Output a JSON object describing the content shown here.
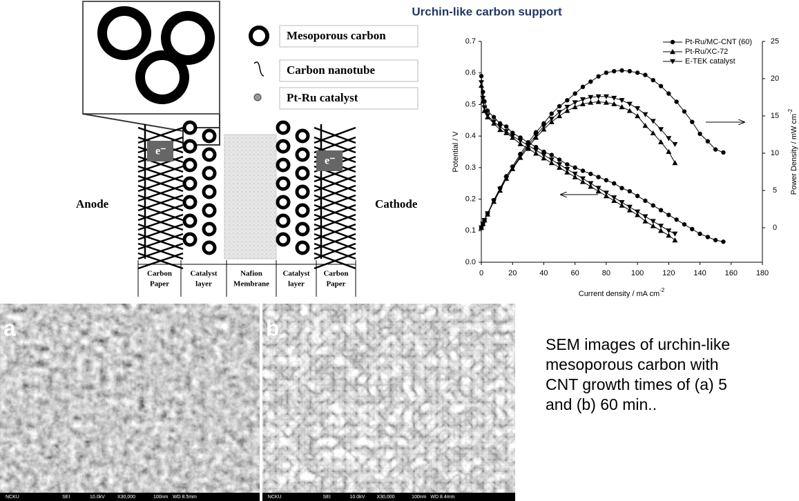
{
  "title": "Urchin-like carbon support",
  "diagram": {
    "legend": [
      "Mesoporous carbon",
      "Carbon nanotube",
      "Pt-Ru catalyst"
    ],
    "anode": "Anode",
    "cathode": "Cathode",
    "electrons": [
      "e⁻",
      "e⁻"
    ],
    "layers": [
      [
        "Carbon",
        "Paper"
      ],
      [
        "Catalyst",
        "layer"
      ],
      [
        "Nafion",
        "Membrane"
      ],
      [
        "Catalyst",
        "layer"
      ],
      [
        "Carbon",
        "Paper"
      ]
    ]
  },
  "chart_data": {
    "type": "line",
    "x_label": {
      "text": "Current density / mA cm",
      "sup": "-2"
    },
    "y_label": "Potential / V",
    "y2_label": {
      "text": "Power Density / mW cm",
      "sup": "-2"
    },
    "xlim": [
      0,
      180
    ],
    "xticks": [
      0,
      20,
      40,
      60,
      80,
      100,
      120,
      140,
      160,
      180
    ],
    "ylim": [
      0,
      0.7
    ],
    "yticks": [
      {
        "value": 0,
        "label": "0.0"
      },
      0.1,
      0.2,
      0.3,
      0.4,
      0.5,
      0.6,
      0.7
    ],
    "y2lim": [
      -4.63,
      25
    ],
    "y2ticks": [
      0,
      5,
      10,
      15,
      20,
      25
    ],
    "legend": "upper right",
    "series": [
      {
        "name": "Pt-Ru/MC-CNT (60)",
        "color": "#000000",
        "marker": "circle",
        "x": [
          0,
          1,
          2,
          4,
          8,
          12,
          16,
          20,
          25,
          30,
          35,
          40,
          45,
          50,
          55,
          60,
          65,
          70,
          75,
          80,
          85,
          90,
          95,
          100,
          105,
          110,
          115,
          120,
          125,
          130,
          135,
          140,
          145,
          150,
          155
        ],
        "values": [
          0.59,
          0.54,
          0.51,
          0.48,
          0.46,
          0.44,
          0.43,
          0.41,
          0.395,
          0.38,
          0.365,
          0.35,
          0.34,
          0.325,
          0.31,
          0.3,
          0.29,
          0.28,
          0.27,
          0.26,
          0.25,
          0.235,
          0.225,
          0.21,
          0.195,
          0.18,
          0.165,
          0.15,
          0.135,
          0.12,
          0.105,
          0.09,
          0.08,
          0.07,
          0.065
        ]
      },
      {
        "name": "Pt-Ru/XC-72",
        "color": "#000000",
        "marker": "triangle-up",
        "x": [
          0,
          1,
          2,
          4,
          8,
          12,
          16,
          20,
          25,
          30,
          35,
          40,
          45,
          50,
          55,
          60,
          65,
          70,
          75,
          80,
          85,
          90,
          95,
          100,
          105,
          110,
          115,
          120,
          124
        ],
        "values": [
          0.56,
          0.51,
          0.48,
          0.46,
          0.44,
          0.42,
          0.41,
          0.395,
          0.375,
          0.36,
          0.345,
          0.33,
          0.315,
          0.3,
          0.285,
          0.27,
          0.255,
          0.24,
          0.225,
          0.21,
          0.195,
          0.18,
          0.165,
          0.15,
          0.13,
          0.115,
          0.1,
          0.085,
          0.07
        ]
      },
      {
        "name": "E-TEK catalyst",
        "color": "#000000",
        "marker": "triangle-down",
        "x": [
          0,
          1,
          2,
          4,
          8,
          12,
          16,
          20,
          25,
          30,
          35,
          40,
          45,
          50,
          55,
          60,
          65,
          70,
          75,
          80,
          85,
          90,
          95,
          100,
          105,
          110,
          115,
          120,
          124
        ],
        "values": [
          0.57,
          0.52,
          0.49,
          0.465,
          0.445,
          0.43,
          0.415,
          0.4,
          0.385,
          0.37,
          0.355,
          0.34,
          0.325,
          0.31,
          0.295,
          0.28,
          0.265,
          0.25,
          0.235,
          0.22,
          0.205,
          0.19,
          0.175,
          0.16,
          0.145,
          0.13,
          0.115,
          0.1,
          0.09
        ]
      },
      {
        "axis": "y2",
        "color": "#000000",
        "marker": "circle",
        "x": [
          0,
          1,
          2,
          4,
          8,
          12,
          16,
          20,
          25,
          30,
          35,
          40,
          45,
          50,
          55,
          60,
          65,
          70,
          75,
          80,
          85,
          90,
          95,
          100,
          105,
          110,
          115,
          120,
          125,
          130,
          135,
          140,
          145,
          150,
          155
        ],
        "values": [
          0,
          0.5,
          1.0,
          1.9,
          3.7,
          5.3,
          6.9,
          8.2,
          9.9,
          11.4,
          12.8,
          14.0,
          15.3,
          16.3,
          17.1,
          18.0,
          18.9,
          19.6,
          20.3,
          20.8,
          21.0,
          21.1,
          21.0,
          20.8,
          20.5,
          19.8,
          19.0,
          18.0,
          16.9,
          15.6,
          14.2,
          12.6,
          11.6,
          10.5,
          10.1
        ]
      },
      {
        "axis": "y2",
        "color": "#000000",
        "marker": "triangle-up",
        "x": [
          0,
          1,
          2,
          4,
          8,
          12,
          16,
          20,
          25,
          30,
          35,
          40,
          45,
          50,
          55,
          60,
          65,
          70,
          75,
          80,
          85,
          90,
          95,
          100,
          105,
          110,
          115,
          120,
          124
        ],
        "values": [
          0,
          0.5,
          1.0,
          1.8,
          3.5,
          5.0,
          6.6,
          7.9,
          9.4,
          10.8,
          12.1,
          13.2,
          14.2,
          15.0,
          15.7,
          16.2,
          16.6,
          16.8,
          16.9,
          16.8,
          16.6,
          16.2,
          15.7,
          15.0,
          13.7,
          12.7,
          11.5,
          10.2,
          8.7
        ]
      },
      {
        "axis": "y2",
        "color": "#000000",
        "marker": "triangle-down",
        "x": [
          0,
          1,
          2,
          4,
          8,
          12,
          16,
          20,
          25,
          30,
          35,
          40,
          45,
          50,
          55,
          60,
          65,
          70,
          75,
          80,
          85,
          90,
          95,
          100,
          105,
          110,
          115,
          120,
          124
        ],
        "values": [
          0,
          0.5,
          1.0,
          1.9,
          3.6,
          5.2,
          6.6,
          8.0,
          9.6,
          11.1,
          12.4,
          13.6,
          14.6,
          15.5,
          16.2,
          16.8,
          17.2,
          17.5,
          17.6,
          17.6,
          17.4,
          17.1,
          16.6,
          16.0,
          15.2,
          14.3,
          13.2,
          12.0,
          11.2
        ]
      }
    ]
  },
  "sem_images": [
    {
      "label": "a",
      "info": [
        "NCKU",
        "SEI",
        "10.0kV",
        "X30,000",
        "100nm",
        "WD 8.5mm"
      ]
    },
    {
      "label": "b",
      "info": [
        "NCKU",
        "SEI",
        "10.0kV",
        "X30,000",
        "100nm",
        "WD 8.4mm"
      ]
    }
  ],
  "caption": "SEM images of urchin-like mesoporous carbon with CNT growth times of (a) 5 and (b) 60 min.."
}
